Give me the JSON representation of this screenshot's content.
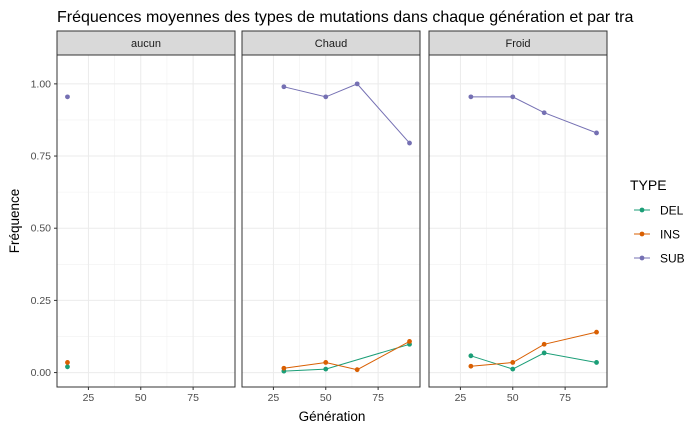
{
  "chart_data": {
    "type": "line",
    "title": "Fréquences moyennes des types de mutations dans chaque génération et par tra",
    "xlabel": "Génération",
    "ylabel": "Fréquence",
    "xlim": [
      10,
      95
    ],
    "ylim": [
      -0.05,
      1.1
    ],
    "xticks": [
      25,
      50,
      75
    ],
    "yticks": [
      0.0,
      0.25,
      0.5,
      0.75,
      1.0
    ],
    "ytick_labels": [
      "0.00",
      "0.25",
      "0.50",
      "0.75",
      "1.00"
    ],
    "grid": true,
    "legend": {
      "title": "TYPE",
      "position": "right",
      "entries": [
        "DEL",
        "INS",
        "SUB"
      ]
    },
    "colors": {
      "DEL": "#1b9e77",
      "INS": "#d95f02",
      "SUB": "#7570b3"
    },
    "facets": [
      {
        "label": "aucun",
        "series": [
          {
            "name": "DEL",
            "x": [
              15
            ],
            "y": [
              0.02
            ]
          },
          {
            "name": "INS",
            "x": [
              15
            ],
            "y": [
              0.035
            ]
          },
          {
            "name": "SUB",
            "x": [
              15
            ],
            "y": [
              0.955
            ]
          }
        ]
      },
      {
        "label": "Chaud",
        "series": [
          {
            "name": "DEL",
            "x": [
              30,
              50,
              90
            ],
            "y": [
              0.005,
              0.012,
              0.098
            ]
          },
          {
            "name": "INS",
            "x": [
              30,
              50,
              65,
              90
            ],
            "y": [
              0.015,
              0.035,
              0.01,
              0.108
            ]
          },
          {
            "name": "SUB",
            "x": [
              30,
              50,
              65,
              90
            ],
            "y": [
              0.99,
              0.955,
              1.0,
              0.795
            ]
          }
        ]
      },
      {
        "label": "Froid",
        "series": [
          {
            "name": "DEL",
            "x": [
              30,
              50,
              65,
              90
            ],
            "y": [
              0.058,
              0.012,
              0.068,
              0.035
            ]
          },
          {
            "name": "INS",
            "x": [
              30,
              50,
              65,
              90
            ],
            "y": [
              0.022,
              0.035,
              0.098,
              0.14
            ]
          },
          {
            "name": "SUB",
            "x": [
              30,
              50,
              65,
              90
            ],
            "y": [
              0.955,
              0.955,
              0.9,
              0.83
            ]
          }
        ]
      }
    ]
  }
}
